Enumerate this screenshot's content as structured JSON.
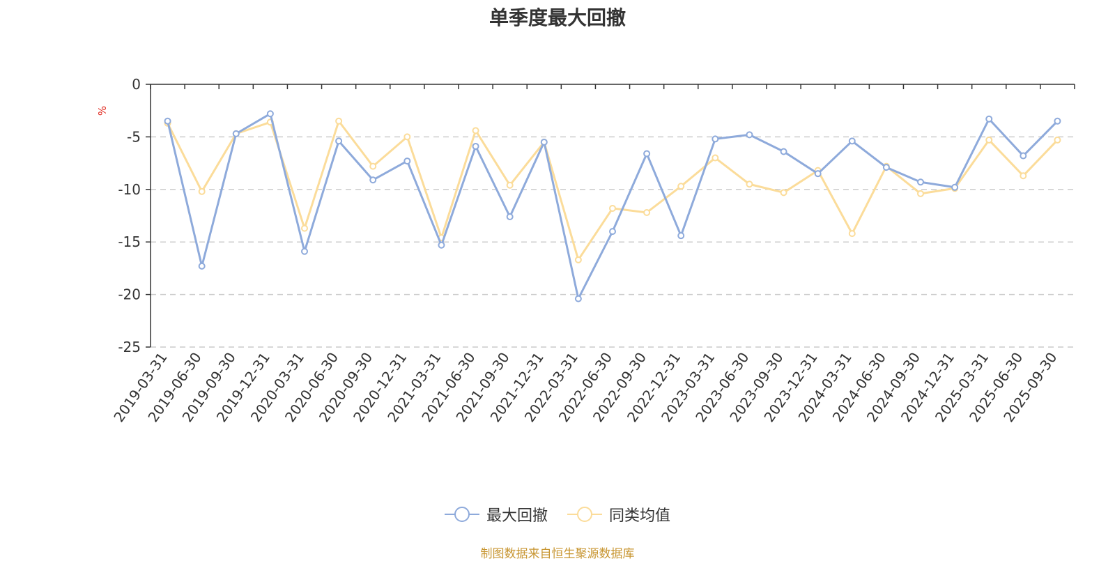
{
  "title": "单季度最大回撤",
  "footer": "制图数据来自恒生聚源数据库",
  "chart_data": {
    "type": "line",
    "title": "单季度最大回撤",
    "ylabel": "%",
    "xlabel": "",
    "ylim": [
      -25,
      0
    ],
    "yticks": [
      0,
      -5,
      -10,
      -15,
      -20,
      -25
    ],
    "grid": true,
    "legend_position": "bottom",
    "x": [
      "2019-03-31",
      "2019-06-30",
      "2019-09-30",
      "2019-12-31",
      "2020-03-31",
      "2020-06-30",
      "2020-09-30",
      "2020-12-31",
      "2021-03-31",
      "2021-06-30",
      "2021-09-30",
      "2021-12-31",
      "2022-03-31",
      "2022-06-30",
      "2022-09-30",
      "2022-12-31",
      "2023-03-31",
      "2023-06-30",
      "2023-09-30",
      "2023-12-31",
      "2024-03-31",
      "2024-06-30",
      "2024-09-30",
      "2024-12-31",
      "2025-03-31",
      "2025-06-30",
      "2025-09-30"
    ],
    "series": [
      {
        "name": "最大回撤",
        "color": "#8eaadb",
        "values": [
          -3.5,
          -17.3,
          -4.7,
          -2.8,
          -15.9,
          -5.4,
          -9.1,
          -7.3,
          -15.3,
          -5.9,
          -12.6,
          -5.5,
          -20.4,
          -14.0,
          -6.6,
          -14.4,
          -5.2,
          -4.8,
          -6.4,
          -8.5,
          -5.4,
          -7.9,
          -9.3,
          -9.8,
          -3.3,
          -6.8,
          -3.5
        ]
      },
      {
        "name": "同类均值",
        "color": "#fbdc9a",
        "values": [
          -3.7,
          -10.2,
          -4.7,
          -3.6,
          -13.7,
          -3.5,
          -7.8,
          -5.0,
          -14.6,
          -4.4,
          -9.6,
          -5.5,
          -16.7,
          -11.8,
          -12.2,
          -9.7,
          -7.0,
          -9.5,
          -10.3,
          -8.2,
          -14.2,
          -7.8,
          -10.4,
          -9.9,
          -5.3,
          -8.7,
          -5.3
        ]
      }
    ]
  }
}
